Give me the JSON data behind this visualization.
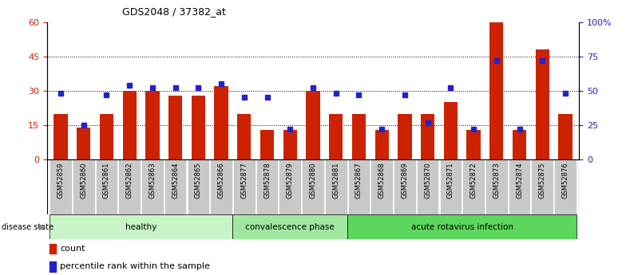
{
  "title": "GDS2048 / 37382_at",
  "samples": [
    "GSM52859",
    "GSM52860",
    "GSM52861",
    "GSM52862",
    "GSM52863",
    "GSM52864",
    "GSM52865",
    "GSM52866",
    "GSM52877",
    "GSM52878",
    "GSM52879",
    "GSM52880",
    "GSM52881",
    "GSM52867",
    "GSM52868",
    "GSM52869",
    "GSM52870",
    "GSM52871",
    "GSM52872",
    "GSM52873",
    "GSM52874",
    "GSM52875",
    "GSM52876"
  ],
  "counts": [
    20,
    14,
    20,
    30,
    30,
    28,
    28,
    32,
    20,
    13,
    13,
    30,
    20,
    20,
    13,
    20,
    20,
    25,
    13,
    60,
    13,
    48,
    20
  ],
  "percentiles": [
    48,
    25,
    47,
    54,
    52,
    52,
    52,
    55,
    45,
    45,
    22,
    52,
    48,
    47,
    22,
    47,
    27,
    52,
    22,
    72,
    22,
    72,
    48
  ],
  "groups": [
    {
      "label": "healthy",
      "start": 0,
      "end": 8,
      "color": "#c8f5c8"
    },
    {
      "label": "convalescence phase",
      "start": 8,
      "end": 13,
      "color": "#a0e8a0"
    },
    {
      "label": "acute rotavirus infection",
      "start": 13,
      "end": 23,
      "color": "#5cd65c"
    }
  ],
  "bar_color": "#CC2200",
  "dot_color": "#2222CC",
  "tick_bg_color": "#c8c8c8",
  "ylim_left": [
    0,
    60
  ],
  "ylim_right": [
    0,
    100
  ],
  "yticks_left": [
    0,
    15,
    30,
    45,
    60
  ],
  "yticks_right": [
    0,
    25,
    50,
    75,
    100
  ],
  "ytick_labels_right": [
    "0",
    "25",
    "50",
    "75",
    "100%"
  ],
  "grid_lines": [
    15,
    30,
    45
  ]
}
